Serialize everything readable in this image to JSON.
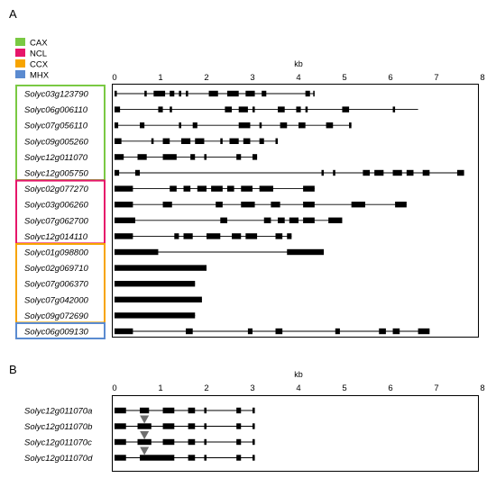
{
  "panel_a_label": "A",
  "panel_b_label": "B",
  "legend": [
    {
      "key": "cax",
      "label": "CAX",
      "color": "#7ac943"
    },
    {
      "key": "ncl",
      "label": "NCL",
      "color": "#e6166a"
    },
    {
      "key": "ccx",
      "label": "CCX",
      "color": "#f7a400"
    },
    {
      "key": "mhx",
      "label": "MHX",
      "color": "#5b8bd0"
    }
  ],
  "axis": {
    "title": "kb",
    "ticks": [
      "0",
      "1",
      "2",
      "3",
      "4",
      "5",
      "6",
      "7",
      "8"
    ],
    "max": 8
  },
  "panel_a_genes": [
    {
      "name": "Solyc03g123790",
      "group": "cax",
      "length": 4.35,
      "exons": [
        [
          0,
          0.05
        ],
        [
          0.65,
          0.7
        ],
        [
          0.85,
          1.1
        ],
        [
          1.2,
          1.3
        ],
        [
          1.4,
          1.45
        ],
        [
          1.55,
          1.6
        ],
        [
          2.05,
          2.25
        ],
        [
          2.45,
          2.7
        ],
        [
          2.85,
          3.05
        ],
        [
          3.2,
          3.3
        ],
        [
          4.15,
          4.25
        ],
        [
          4.32,
          4.35
        ]
      ]
    },
    {
      "name": "Solyc06g006110",
      "group": "cax",
      "length": 6.6,
      "exons": [
        [
          0,
          0.12
        ],
        [
          0.95,
          1.05
        ],
        [
          1.2,
          1.25
        ],
        [
          2.4,
          2.55
        ],
        [
          2.7,
          2.9
        ],
        [
          3.0,
          3.05
        ],
        [
          3.55,
          3.7
        ],
        [
          3.95,
          4.05
        ],
        [
          4.15,
          4.2
        ],
        [
          4.95,
          5.1
        ],
        [
          6.05,
          6.1
        ]
      ]
    },
    {
      "name": "Solyc07g056110",
      "group": "cax",
      "length": 5.15,
      "exons": [
        [
          0,
          0.08
        ],
        [
          0.55,
          0.65
        ],
        [
          1.4,
          1.45
        ],
        [
          1.7,
          1.8
        ],
        [
          2.7,
          2.95
        ],
        [
          3.15,
          3.2
        ],
        [
          3.6,
          3.75
        ],
        [
          4.0,
          4.15
        ],
        [
          4.6,
          4.75
        ],
        [
          5.1,
          5.15
        ]
      ]
    },
    {
      "name": "Solyc09g005260",
      "group": "cax",
      "length": 3.55,
      "exons": [
        [
          0,
          0.15
        ],
        [
          0.8,
          0.85
        ],
        [
          1.05,
          1.2
        ],
        [
          1.45,
          1.65
        ],
        [
          1.75,
          1.95
        ],
        [
          2.3,
          2.35
        ],
        [
          2.5,
          2.7
        ],
        [
          2.8,
          2.95
        ],
        [
          3.15,
          3.25
        ],
        [
          3.5,
          3.55
        ]
      ]
    },
    {
      "name": "Solyc12g011070",
      "group": "cax",
      "length": 3.1,
      "exons": [
        [
          0,
          0.2
        ],
        [
          0.5,
          0.7
        ],
        [
          1.05,
          1.35
        ],
        [
          1.65,
          1.75
        ],
        [
          1.95,
          2.0
        ],
        [
          2.65,
          2.75
        ],
        [
          3.0,
          3.1
        ]
      ]
    },
    {
      "name": "Solyc12g005750",
      "group": "cax",
      "length": 7.6,
      "exons": [
        [
          0,
          0.1
        ],
        [
          0.45,
          0.55
        ],
        [
          4.5,
          4.55
        ],
        [
          4.75,
          4.8
        ],
        [
          5.4,
          5.55
        ],
        [
          5.65,
          5.85
        ],
        [
          6.05,
          6.25
        ],
        [
          6.35,
          6.5
        ],
        [
          6.7,
          6.85
        ],
        [
          7.45,
          7.6
        ]
      ]
    },
    {
      "name": "Solyc02g077270",
      "group": "ncl",
      "length": 4.35,
      "exons": [
        [
          0,
          0.4
        ],
        [
          1.2,
          1.35
        ],
        [
          1.5,
          1.65
        ],
        [
          1.8,
          2.0
        ],
        [
          2.1,
          2.35
        ],
        [
          2.45,
          2.6
        ],
        [
          2.75,
          3.0
        ],
        [
          3.15,
          3.45
        ],
        [
          4.1,
          4.35
        ]
      ]
    },
    {
      "name": "Solyc03g006260",
      "group": "ncl",
      "length": 6.35,
      "exons": [
        [
          0,
          0.4
        ],
        [
          1.05,
          1.25
        ],
        [
          2.2,
          2.35
        ],
        [
          2.75,
          3.05
        ],
        [
          3.4,
          3.6
        ],
        [
          4.1,
          4.35
        ],
        [
          5.15,
          5.45
        ],
        [
          6.1,
          6.35
        ]
      ]
    },
    {
      "name": "Solyc07g062700",
      "group": "ncl",
      "length": 4.95,
      "exons": [
        [
          0,
          0.45
        ],
        [
          2.3,
          2.45
        ],
        [
          3.25,
          3.4
        ],
        [
          3.55,
          3.7
        ],
        [
          3.8,
          4.0
        ],
        [
          4.1,
          4.35
        ],
        [
          4.65,
          4.95
        ]
      ]
    },
    {
      "name": "Solyc12g014110",
      "group": "ncl",
      "length": 3.85,
      "exons": [
        [
          0,
          0.4
        ],
        [
          1.3,
          1.4
        ],
        [
          1.5,
          1.7
        ],
        [
          2.0,
          2.3
        ],
        [
          2.55,
          2.75
        ],
        [
          2.85,
          3.1
        ],
        [
          3.5,
          3.65
        ],
        [
          3.75,
          3.85
        ]
      ]
    },
    {
      "name": "Solyc01g098800",
      "group": "ccx",
      "length": 4.55,
      "exons": [
        [
          0,
          0.95
        ],
        [
          3.75,
          4.55
        ]
      ]
    },
    {
      "name": "Solyc02g069710",
      "group": "ccx",
      "length": 2.0,
      "exons": [
        [
          0,
          2.0
        ]
      ]
    },
    {
      "name": "Solyc07g006370",
      "group": "ccx",
      "length": 1.75,
      "exons": [
        [
          0,
          1.75
        ]
      ]
    },
    {
      "name": "Solyc07g042000",
      "group": "ccx",
      "length": 1.9,
      "exons": [
        [
          0,
          1.9
        ]
      ]
    },
    {
      "name": "Solyc09g072690",
      "group": "ccx",
      "length": 1.75,
      "exons": [
        [
          0,
          1.75
        ]
      ]
    },
    {
      "name": "Solyc06g009130",
      "group": "mhx",
      "length": 6.85,
      "exons": [
        [
          0,
          0.4
        ],
        [
          1.55,
          1.7
        ],
        [
          2.9,
          3.0
        ],
        [
          3.5,
          3.65
        ],
        [
          4.8,
          4.9
        ],
        [
          5.75,
          5.9
        ],
        [
          6.05,
          6.2
        ],
        [
          6.6,
          6.85
        ]
      ]
    }
  ],
  "panel_b_genes": [
    {
      "name": "Solyc12g011070a",
      "length": 3.05,
      "exons": [
        [
          0,
          0.25
        ],
        [
          0.55,
          0.75
        ],
        [
          1.05,
          1.3
        ],
        [
          1.6,
          1.75
        ],
        [
          1.95,
          2.0
        ],
        [
          2.65,
          2.75
        ],
        [
          3.0,
          3.05
        ]
      ],
      "marker": null
    },
    {
      "name": "Solyc12g011070b",
      "length": 3.05,
      "exons": [
        [
          0,
          0.25
        ],
        [
          0.5,
          0.8
        ],
        [
          1.05,
          1.3
        ],
        [
          1.6,
          1.75
        ],
        [
          1.95,
          2.0
        ],
        [
          2.65,
          2.75
        ],
        [
          3.0,
          3.05
        ]
      ],
      "marker": 0.65
    },
    {
      "name": "Solyc12g011070c",
      "length": 3.05,
      "exons": [
        [
          0,
          0.25
        ],
        [
          0.5,
          0.8
        ],
        [
          1.05,
          1.3
        ],
        [
          1.6,
          1.75
        ],
        [
          1.95,
          2.0
        ],
        [
          2.65,
          2.75
        ],
        [
          3.0,
          3.05
        ]
      ],
      "marker": 0.65
    },
    {
      "name": "Solyc12g011070d",
      "length": 3.05,
      "exons": [
        [
          0,
          0.25
        ],
        [
          0.55,
          1.3
        ],
        [
          1.6,
          1.75
        ],
        [
          1.95,
          2.0
        ],
        [
          2.65,
          2.75
        ],
        [
          3.0,
          3.05
        ]
      ],
      "marker": 0.65
    }
  ]
}
